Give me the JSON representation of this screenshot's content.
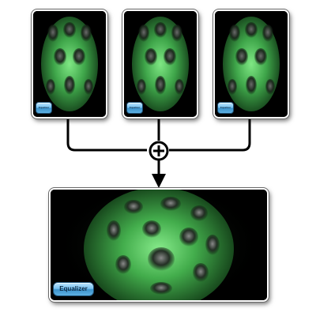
{
  "inputs": [
    {
      "badge_label": "Equalizer"
    },
    {
      "badge_label": "Equalizer"
    },
    {
      "badge_label": "Equalizer"
    }
  ],
  "output": {
    "badge_label": "Equalizer"
  },
  "operator": {
    "symbol": "+",
    "icon": "plus-circle-icon"
  },
  "colors": {
    "card_background": "#000000",
    "render_green": "#4fc85a",
    "badge_blue": "#5fb1e3",
    "connector": "#000000"
  }
}
